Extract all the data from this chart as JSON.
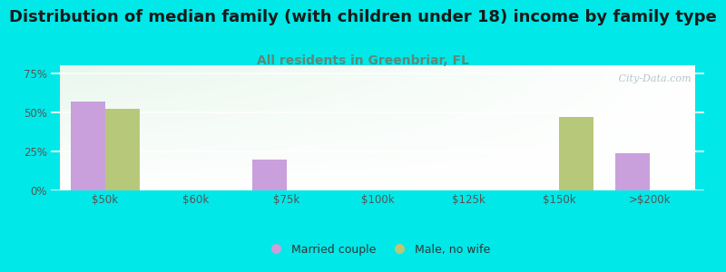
{
  "title": "Distribution of median family (with children under 18) income by family type",
  "subtitle": "All residents in Greenbriar, FL",
  "categories": [
    "$50k",
    "$60k",
    "$75k",
    "$100k",
    "$125k",
    "$150k",
    ">$200k"
  ],
  "married_couple": [
    57,
    0,
    20,
    0,
    0,
    0,
    24
  ],
  "male_no_wife": [
    52,
    0,
    0,
    0,
    0,
    47,
    0
  ],
  "bar_color_married": "#c9a0dc",
  "bar_color_male": "#b8c87a",
  "background_color": "#00e8e8",
  "ylabel_ticks": [
    "0%",
    "25%",
    "50%",
    "75%"
  ],
  "ytick_vals": [
    0,
    25,
    50,
    75
  ],
  "ylim": [
    0,
    80
  ],
  "bar_width": 0.38,
  "title_fontsize": 13,
  "subtitle_fontsize": 10,
  "legend_label_married": "Married couple",
  "legend_label_male": "Male, no wife",
  "watermark": " City-Data.com"
}
